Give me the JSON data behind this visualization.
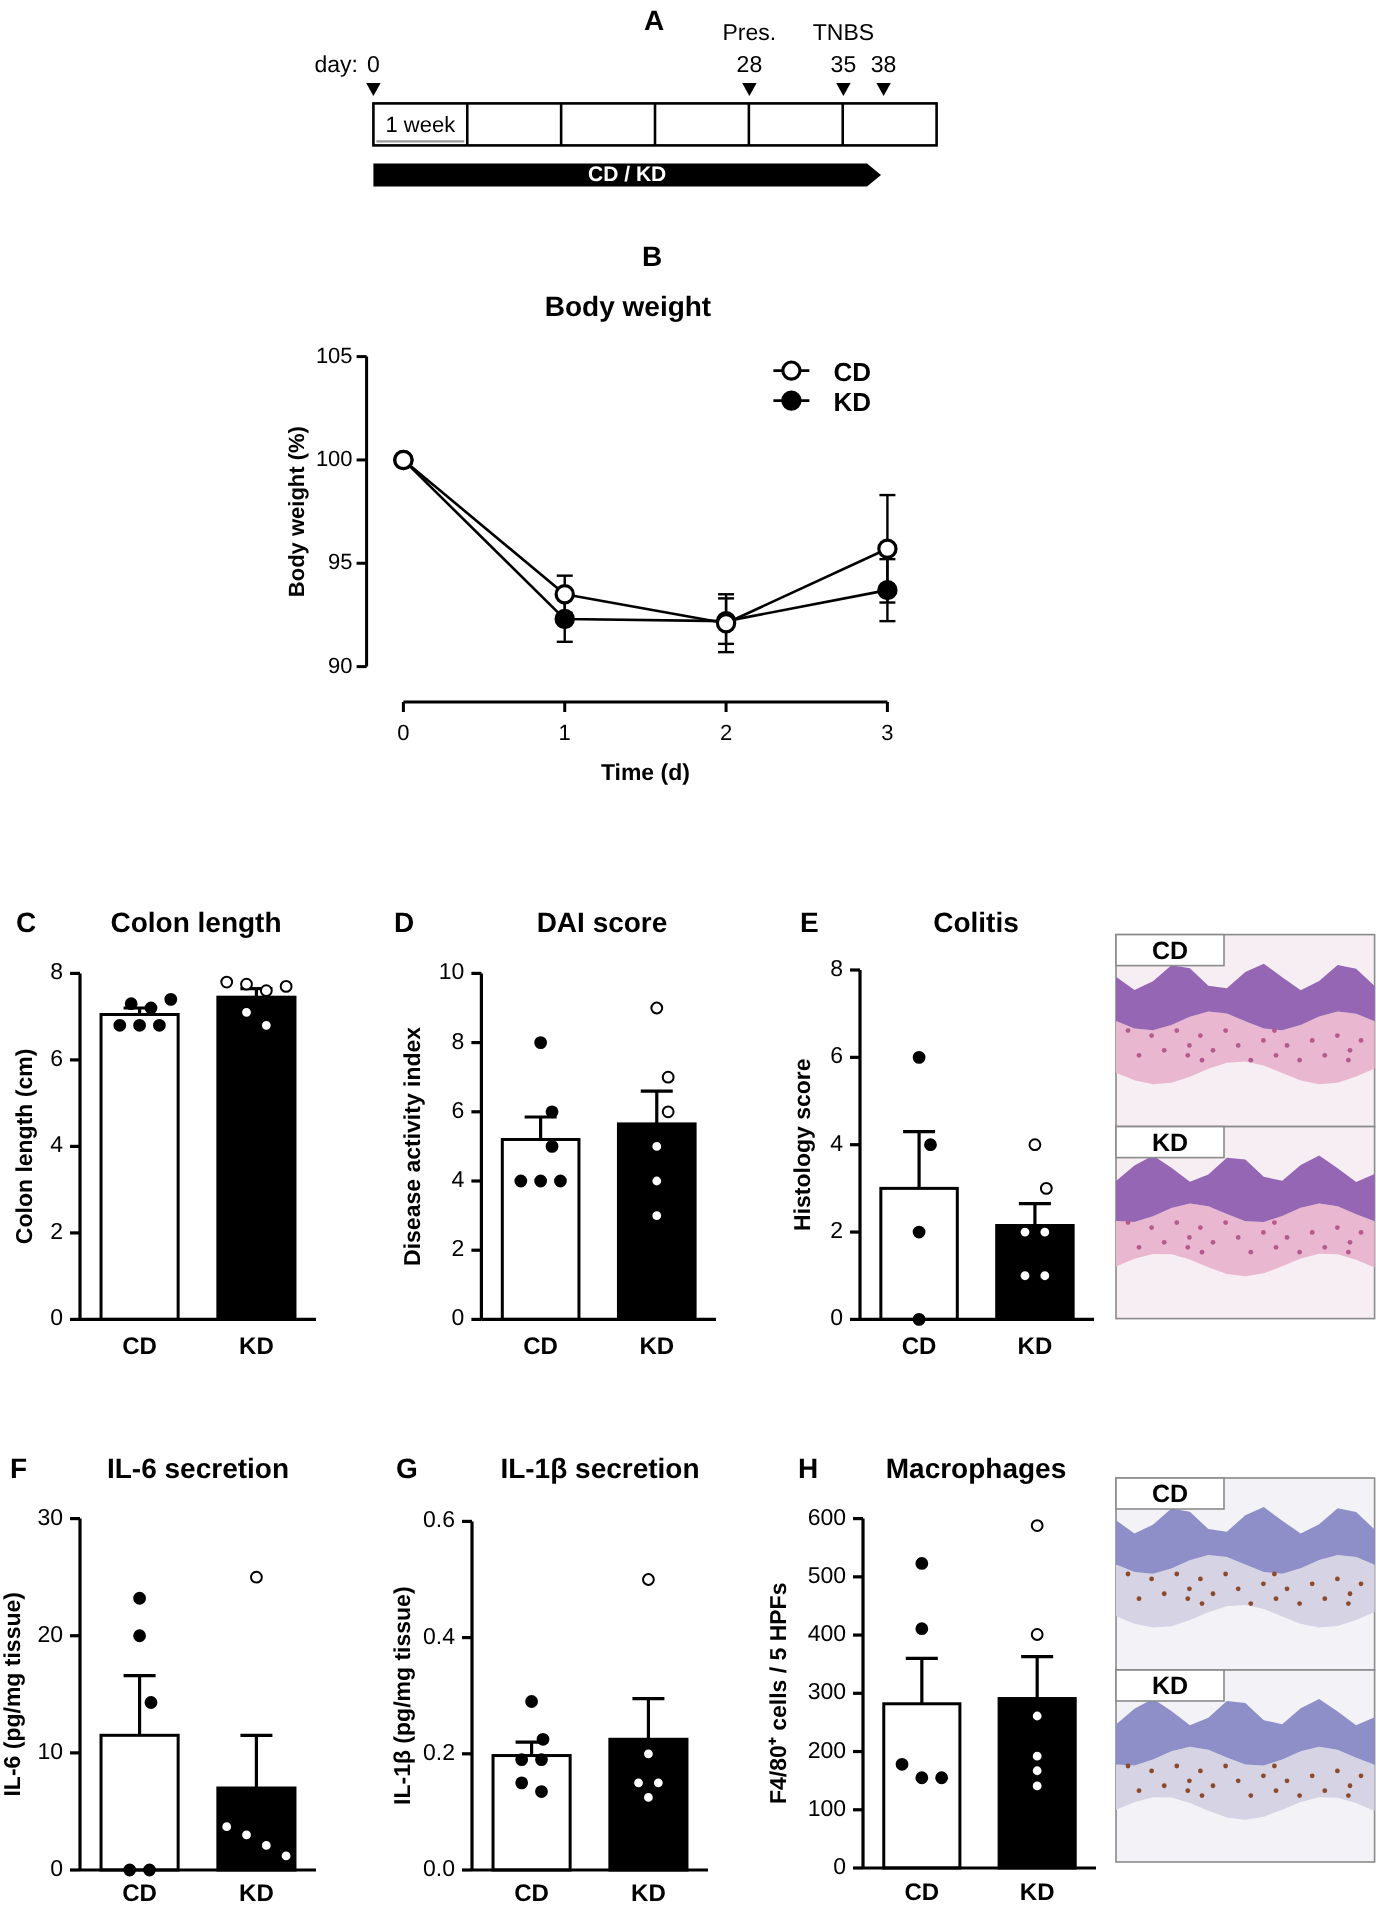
{
  "chart_data": [
    {
      "type": "other",
      "xlabel": "day:",
      "annotations": [
        "A",
        "0",
        "28",
        "35",
        "38",
        "Pres.",
        "TNBS",
        "1 week",
        "CD / KD"
      ]
    },
    {
      "type": "line",
      "title": "Body weight",
      "xlabel": "Time (d)",
      "ylabel": "Body weight (%)",
      "x": [
        0,
        1,
        2,
        3
      ],
      "xlim": [
        0,
        3
      ],
      "xticks": [
        0,
        1,
        2,
        3
      ],
      "ylim": [
        90,
        105
      ],
      "yticks": [
        90,
        95,
        100,
        105
      ],
      "legend": "top right",
      "marker": "circle",
      "line_style": "solid",
      "annotations": [
        "B"
      ],
      "series": [
        {
          "name": "CD",
          "color": "#ffffff",
          "values": [
            100,
            93.5,
            92.1,
            95.7
          ],
          "errors": [
            null,
            0.9,
            1.4,
            2.6
          ]
        },
        {
          "name": "KD",
          "color": "#000000",
          "values": [
            100,
            92.3,
            92.2,
            93.7
          ],
          "errors": [
            null,
            1.1,
            1.1,
            1.5
          ]
        }
      ]
    },
    {
      "type": "bar",
      "title": "Colon length",
      "ylabel": "Colon length (cm)",
      "categories": [
        "CD",
        "KD"
      ],
      "ylim": [
        0,
        8
      ],
      "yticks": [
        0,
        2,
        4,
        6,
        8
      ],
      "annotations": [
        "C"
      ],
      "series": [
        {
          "type": "bar",
          "colors": [
            "#ffffff",
            "#000000"
          ],
          "values": [
            7.05,
            7.45
          ],
          "errors": [
            [
              7.05,
              7.2
            ],
            [
              7.45,
              7.65
            ]
          ]
        },
        {
          "type": "scatter",
          "x": [
            "CD",
            "CD",
            "CD",
            "CD",
            "CD",
            "CD"
          ],
          "values": [
            7.3,
            7.2,
            7.4,
            6.8,
            6.8,
            6.8
          ],
          "color": "#000000"
        },
        {
          "type": "scatter",
          "x": [
            "KD",
            "KD",
            "KD",
            "KD",
            "KD",
            "KD"
          ],
          "values": [
            7.8,
            7.75,
            7.6,
            7.7,
            7.1,
            6.8
          ],
          "color": "#ffffff"
        }
      ]
    },
    {
      "type": "bar",
      "title": "DAI score",
      "ylabel": "Disease activity index",
      "categories": [
        "CD",
        "KD"
      ],
      "ylim": [
        0,
        10
      ],
      "yticks": [
        0,
        2,
        4,
        6,
        8,
        10
      ],
      "annotations": [
        "D"
      ],
      "series": [
        {
          "type": "bar",
          "colors": [
            "#ffffff",
            "#000000"
          ],
          "values": [
            5.2,
            5.65
          ],
          "errors": [
            [
              5.2,
              5.85
            ],
            [
              5.65,
              6.6
            ]
          ]
        },
        {
          "type": "scatter",
          "x": [
            "CD",
            "CD",
            "CD",
            "CD",
            "CD",
            "CD"
          ],
          "values": [
            8,
            6,
            5,
            4,
            4,
            4
          ],
          "color": "#000000"
        },
        {
          "type": "scatter",
          "x": [
            "KD",
            "KD",
            "KD",
            "KD",
            "KD",
            "KD"
          ],
          "values": [
            9,
            7,
            6,
            5,
            4,
            3
          ],
          "color": "#ffffff"
        }
      ]
    },
    {
      "type": "bar",
      "title": "Colitis",
      "ylabel": "Histology score",
      "categories": [
        "CD",
        "KD"
      ],
      "ylim": [
        0,
        8
      ],
      "yticks": [
        0,
        2,
        4,
        6,
        8
      ],
      "annotations": [
        "E",
        "CD",
        "KD"
      ],
      "series": [
        {
          "type": "bar",
          "colors": [
            "#ffffff",
            "#000000"
          ],
          "values": [
            3,
            2.15
          ],
          "errors": [
            [
              3,
              4.3
            ],
            [
              2.15,
              2.65
            ]
          ]
        },
        {
          "type": "scatter",
          "x": [
            "CD",
            "CD",
            "CD",
            "CD"
          ],
          "values": [
            6,
            4,
            2,
            0
          ],
          "color": "#000000"
        },
        {
          "type": "scatter",
          "x": [
            "KD",
            "KD",
            "KD",
            "KD",
            "KD",
            "KD"
          ],
          "values": [
            4,
            3,
            2,
            2,
            1,
            1
          ],
          "color": "#ffffff"
        }
      ]
    },
    {
      "type": "bar",
      "title": "IL-6 secretion",
      "ylabel": "IL-6 (pg/mg tissue)",
      "categories": [
        "CD",
        "KD"
      ],
      "ylim": [
        0,
        30
      ],
      "yticks": [
        0,
        10,
        20,
        30
      ],
      "annotations": [
        "F"
      ],
      "series": [
        {
          "type": "bar",
          "colors": [
            "#ffffff",
            "#000000"
          ],
          "values": [
            11.5,
            7
          ],
          "errors": [
            [
              11.5,
              16.6
            ],
            [
              7,
              11.5
            ]
          ]
        },
        {
          "type": "scatter",
          "x": [
            "CD",
            "CD",
            "CD",
            "CD",
            "CD"
          ],
          "values": [
            23.2,
            20,
            14.3,
            0,
            0
          ],
          "color": "#000000"
        },
        {
          "type": "scatter",
          "x": [
            "KD",
            "KD",
            "KD",
            "KD",
            "KD"
          ],
          "values": [
            25,
            3.7,
            3,
            2.1,
            1.2
          ],
          "color": "#ffffff"
        }
      ]
    },
    {
      "type": "bar",
      "title": "IL-1β secretion",
      "ylabel": "IL-1β (pg/mg tissue)",
      "categories": [
        "CD",
        "KD"
      ],
      "ylim": [
        0,
        0.6
      ],
      "yticks": [
        {
          "value": 0,
          "label": "0.0"
        },
        0.2,
        0.4,
        0.6
      ],
      "annotations": [
        "G"
      ],
      "series": [
        {
          "type": "bar",
          "colors": [
            "#ffffff",
            "#000000"
          ],
          "values": [
            0.197,
            0.225
          ],
          "errors": [
            [
              0.197,
              0.22
            ],
            [
              0.225,
              0.295
            ]
          ]
        },
        {
          "type": "scatter",
          "x": [
            "CD",
            "CD",
            "CD",
            "CD",
            "CD",
            "CD"
          ],
          "values": [
            0.29,
            0.225,
            0.19,
            0.19,
            0.15,
            0.135
          ],
          "color": "#000000"
        },
        {
          "type": "scatter",
          "x": [
            "KD",
            "KD",
            "KD",
            "KD",
            "KD"
          ],
          "values": [
            0.5,
            0.2,
            0.15,
            0.15,
            0.125
          ],
          "color": "#ffffff"
        }
      ]
    },
    {
      "type": "bar",
      "title": "Macrophages",
      "ylabel": "F4/80⁺ cells / 5 HPFs",
      "categories": [
        "CD",
        "KD"
      ],
      "ylim": [
        0,
        600
      ],
      "yticks": [
        0,
        100,
        200,
        300,
        400,
        500,
        600
      ],
      "annotations": [
        "H",
        "CD",
        "KD"
      ],
      "series": [
        {
          "type": "bar",
          "colors": [
            "#ffffff",
            "#000000"
          ],
          "values": [
            282,
            291
          ],
          "errors": [
            [
              282,
              360
            ],
            [
              291,
              363
            ]
          ]
        },
        {
          "type": "scatter",
          "x": [
            "CD",
            "CD",
            "CD",
            "CD",
            "CD"
          ],
          "values": [
            523,
            411,
            178,
            155,
            155
          ],
          "color": "#000000"
        },
        {
          "type": "scatter",
          "x": [
            "KD",
            "KD",
            "KD",
            "KD",
            "KD",
            "KD"
          ],
          "values": [
            588,
            401,
            261,
            192,
            167,
            141
          ],
          "color": "#ffffff"
        }
      ]
    }
  ]
}
